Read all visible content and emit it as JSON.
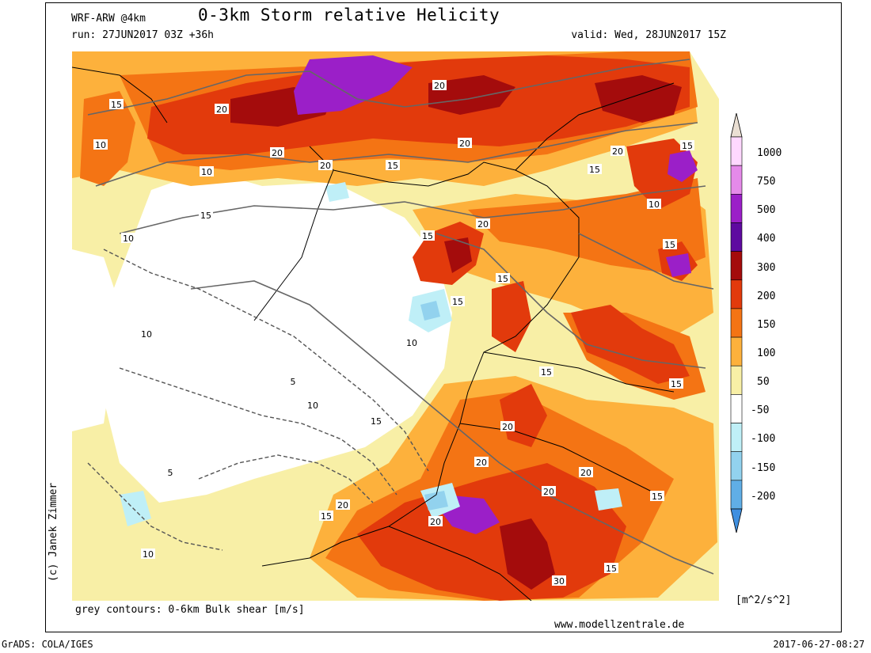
{
  "header": {
    "model": "WRF-ARW @4km",
    "title": "0-3km Storm relative Helicity",
    "run": "run: 27JUN2017 03Z +36h",
    "valid": "valid: Wed, 28JUN2017 15Z"
  },
  "footer": {
    "contours_note": "grey contours: 0-6km Bulk shear [m/s]",
    "website": "www.modellzentrale.de",
    "software": "GrADS: COLA/IGES",
    "timestamp": "2017-06-27-08:27",
    "copyright": "(c) Janek Zimmer"
  },
  "colorbar": {
    "units": "[m^2/s^2]",
    "levels": [
      {
        "label": "1000",
        "color": "#ffd8ff"
      },
      {
        "label": "750",
        "color": "#e58ae9"
      },
      {
        "label": "500",
        "color": "#9b1fc8"
      },
      {
        "label": "400",
        "color": "#5e0aa0"
      },
      {
        "label": "300",
        "color": "#a40c0c"
      },
      {
        "label": "200",
        "color": "#e23a0c"
      },
      {
        "label": "150",
        "color": "#f47414"
      },
      {
        "label": "100",
        "color": "#fdb13c"
      },
      {
        "label": "50",
        "color": "#f8efa6"
      },
      {
        "label": "-50",
        "color": "#ffffff"
      },
      {
        "label": "-100",
        "color": "#bfeff7"
      },
      {
        "label": "-150",
        "color": "#92d2ee"
      },
      {
        "label": "-200",
        "color": "#60aee6"
      }
    ],
    "top_color": "#eadfd3",
    "bottom_color": "#3f8fe0"
  },
  "contour_labels": [
    "5",
    "10",
    "15",
    "20",
    "30"
  ]
}
